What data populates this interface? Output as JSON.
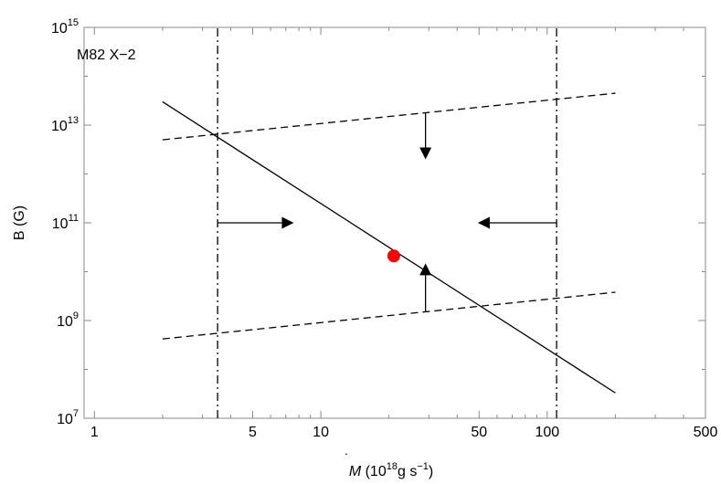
{
  "chart_data": {
    "type": "line",
    "annotation": "M82 X−2",
    "xlabel": {
      "symbol": "M",
      "dot": "˙",
      "prefix": " (10",
      "exp": "18",
      "unit_g": "g s",
      "unit_exp": "−1",
      "suffix": ")"
    },
    "ylabel": "B (G)",
    "xscale": "log",
    "yscale": "log",
    "xlim": [
      0.9,
      500
    ],
    "ylim": [
      10000000.0,
      1000000000000000.0
    ],
    "xticks": [
      {
        "value": 1,
        "label": "1"
      },
      {
        "value": 5,
        "label": "5"
      },
      {
        "value": 10,
        "label": "10"
      },
      {
        "value": 50,
        "label": "50"
      },
      {
        "value": 100,
        "label": "100"
      },
      {
        "value": 500,
        "label": "500"
      }
    ],
    "yticks": [
      {
        "value": 10000000.0,
        "base": "10",
        "exp": "7"
      },
      {
        "value": 1000000000.0,
        "base": "10",
        "exp": "9"
      },
      {
        "value": 100000000000.0,
        "base": "10",
        "exp": "11"
      },
      {
        "value": 10000000000000.0,
        "base": "10",
        "exp": "13"
      },
      {
        "value": 1000000000000000.0,
        "base": "10",
        "exp": "15"
      }
    ],
    "series": [
      {
        "style": "solid",
        "x": [
          2,
          200
        ],
        "y": [
          30000000000000.0,
          33000000.0
        ]
      },
      {
        "style": "dashed",
        "x": [
          2,
          200
        ],
        "y": [
          5000000000000.0,
          45000000000000.0
        ]
      },
      {
        "style": "dashed",
        "x": [
          2,
          200
        ],
        "y": [
          420000000.0,
          3800000000.0
        ]
      },
      {
        "style": "dashdot",
        "x": [
          3.5,
          3.5
        ],
        "y": [
          10000000.0,
          1000000000000000.0
        ]
      },
      {
        "style": "dashdot",
        "x": [
          110,
          110
        ],
        "y": [
          10000000.0,
          1000000000000000.0
        ]
      }
    ],
    "point": {
      "x": 21,
      "y": 21000000000.0,
      "color": "#ff0000"
    },
    "arrows": [
      {
        "from": [
          3.5,
          100000000000.0
        ],
        "to": [
          7.5,
          100000000000.0
        ]
      },
      {
        "from": [
          110,
          100000000000.0
        ],
        "to": [
          50,
          100000000000.0
        ]
      },
      {
        "from": [
          29,
          18000000000000.0
        ],
        "to": [
          29,
          2100000000000.0
        ]
      },
      {
        "from": [
          29,
          1500000000.0
        ],
        "to": [
          29,
          14000000000.0
        ]
      }
    ],
    "colors": {
      "line": "#000000",
      "point": "#ff0000",
      "frame": "#888888"
    }
  }
}
